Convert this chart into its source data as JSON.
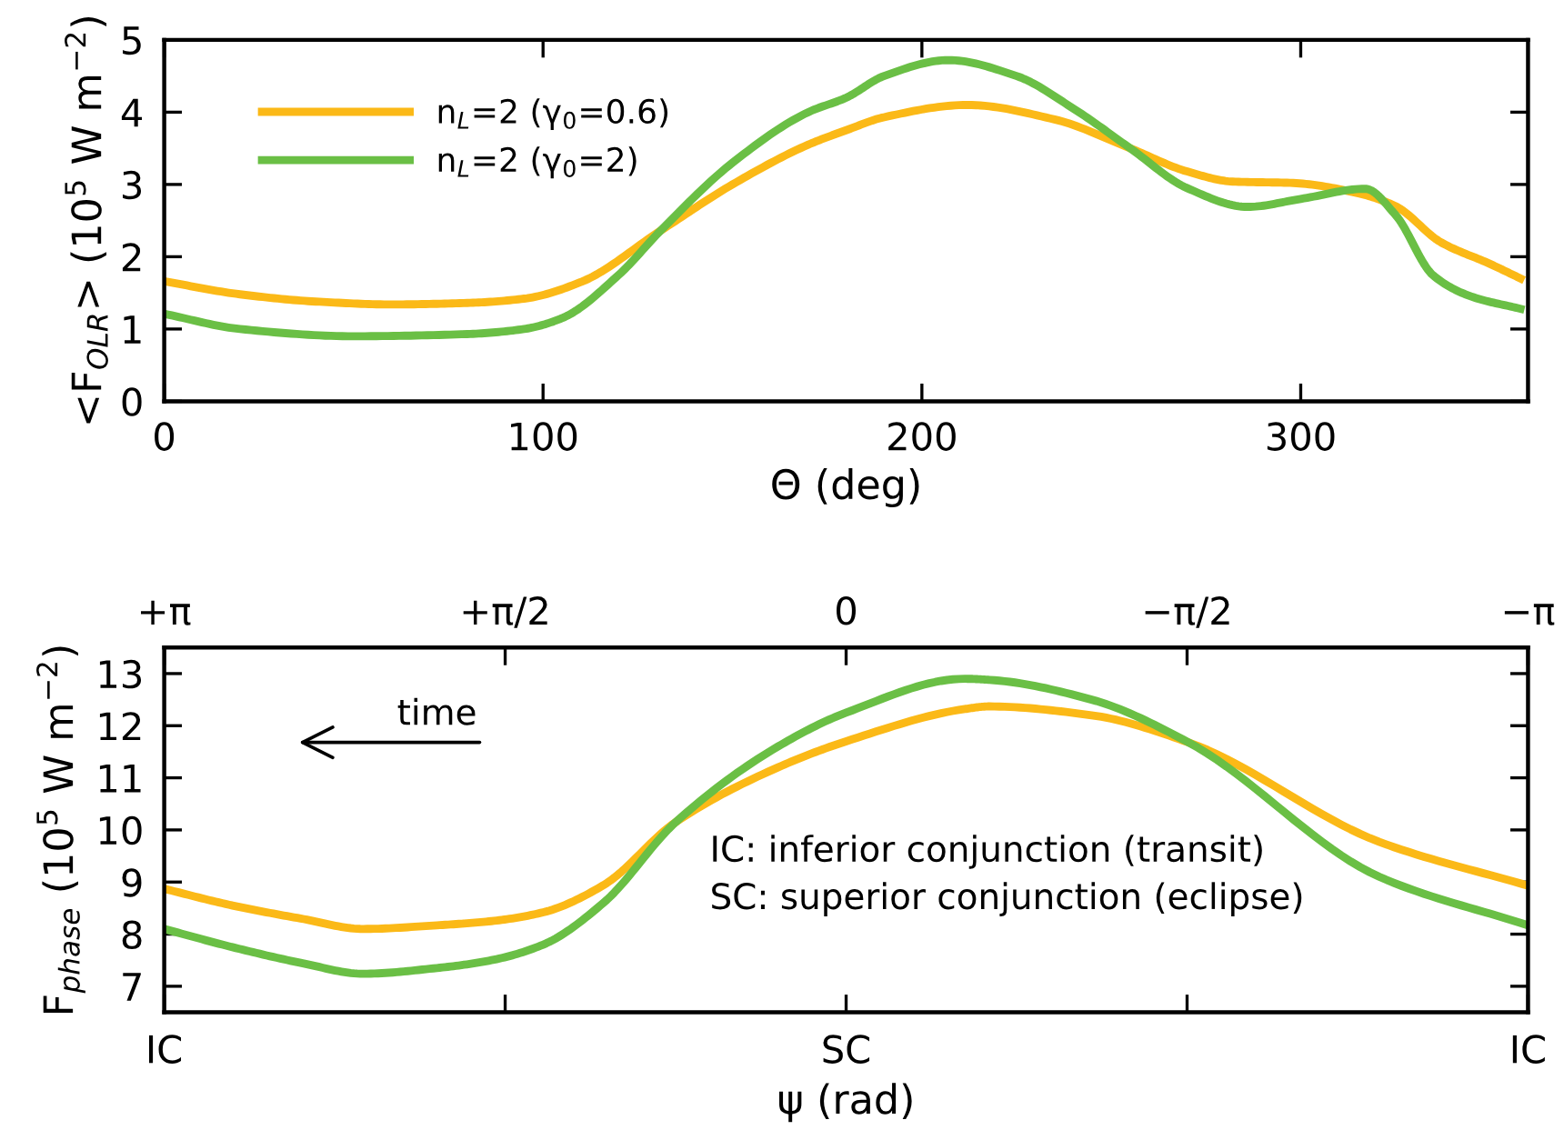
{
  "chart_data": [
    {
      "type": "line",
      "xlabel": "Θ (deg)",
      "ylabel": "<F$_{OLR}$> (10$^{5}$ W m$^{−2}$)",
      "xlim": [
        0,
        360
      ],
      "xticks": [
        0,
        100,
        200,
        300
      ],
      "ylim": [
        0,
        5
      ],
      "yticks": [
        0,
        1,
        2,
        3,
        4,
        5
      ],
      "legend": "top left",
      "grid": false,
      "line_style": "solid",
      "marker": "none",
      "series": [
        {
          "name": "n$_{L}$=2 (γ$_{0}$=0.6)",
          "color": "#fbb917",
          "x": [
            0,
            20,
            40,
            60,
            80,
            95,
            110,
            131,
            150,
            170,
            180,
            190,
            212,
            235,
            255,
            270,
            282,
            298,
            315,
            325,
            337,
            350,
            358
          ],
          "values": [
            1.66,
            1.48,
            1.38,
            1.34,
            1.36,
            1.42,
            1.65,
            2.36,
            3.0,
            3.55,
            3.75,
            3.93,
            4.1,
            3.9,
            3.5,
            3.18,
            3.04,
            3.02,
            2.88,
            2.7,
            2.2,
            1.9,
            1.7
          ]
        },
        {
          "name": "n$_{L}$=2 (γ$_{0}$=2)",
          "color": "#6abf45",
          "x": [
            0,
            20,
            50,
            80,
            95,
            105,
            120,
            131,
            150,
            170,
            180,
            190,
            207,
            225,
            240,
            255,
            270,
            286,
            300,
            317,
            325,
            335,
            345,
            358
          ],
          "values": [
            1.21,
            1.0,
            0.9,
            0.93,
            1.0,
            1.15,
            1.75,
            2.36,
            3.3,
            4.0,
            4.2,
            4.5,
            4.72,
            4.5,
            4.05,
            3.5,
            2.95,
            2.69,
            2.8,
            2.94,
            2.58,
            1.74,
            1.45,
            1.28
          ]
        }
      ]
    },
    {
      "type": "line",
      "xlabel": "ψ (rad)",
      "ylabel": "F$_{phase}$ (10$^{5}$ W m$^{−2}$)",
      "xlim": [
        3.1416,
        -3.1416
      ],
      "xticks": [
        {
          "value": 3.1416,
          "label": "+π"
        },
        {
          "value": 1.5708,
          "label": "+π/2"
        },
        {
          "value": 0,
          "label": "0"
        },
        {
          "value": -1.5708,
          "label": "−π/2"
        },
        {
          "value": -3.1416,
          "label": "−π"
        }
      ],
      "ylim": [
        6.5,
        13.5
      ],
      "yticks": [
        7,
        8,
        9,
        10,
        11,
        12,
        13
      ],
      "grid": false,
      "line_style": "solid",
      "marker": "none",
      "x": [
        3.1416,
        2.827,
        2.513,
        2.224,
        1.885,
        1.634,
        1.395,
        1.118,
        0.785,
        0.314,
        0,
        -0.547,
        -0.66,
        -1.131,
        -1.577,
        -2.457,
        -3.1416
      ],
      "series": [
        {
          "color": "#fbb917",
          "values": [
            8.87,
            8.55,
            8.3,
            8.1,
            8.17,
            8.25,
            8.42,
            8.94,
            10.15,
            11.2,
            11.7,
            12.32,
            12.37,
            12.2,
            11.68,
            9.77,
            8.93
          ]
        },
        {
          "color": "#6abf45",
          "values": [
            8.1,
            7.75,
            7.45,
            7.24,
            7.35,
            7.5,
            7.8,
            8.6,
            10.15,
            11.6,
            12.25,
            12.9,
            12.88,
            12.5,
            11.68,
            9.1,
            8.17
          ]
        }
      ],
      "annotations": [
        "time",
        "IC: inferior conjunction (transit)",
        "SC: superior conjunction (eclipse)",
        "IC",
        "SC",
        "IC"
      ]
    }
  ]
}
